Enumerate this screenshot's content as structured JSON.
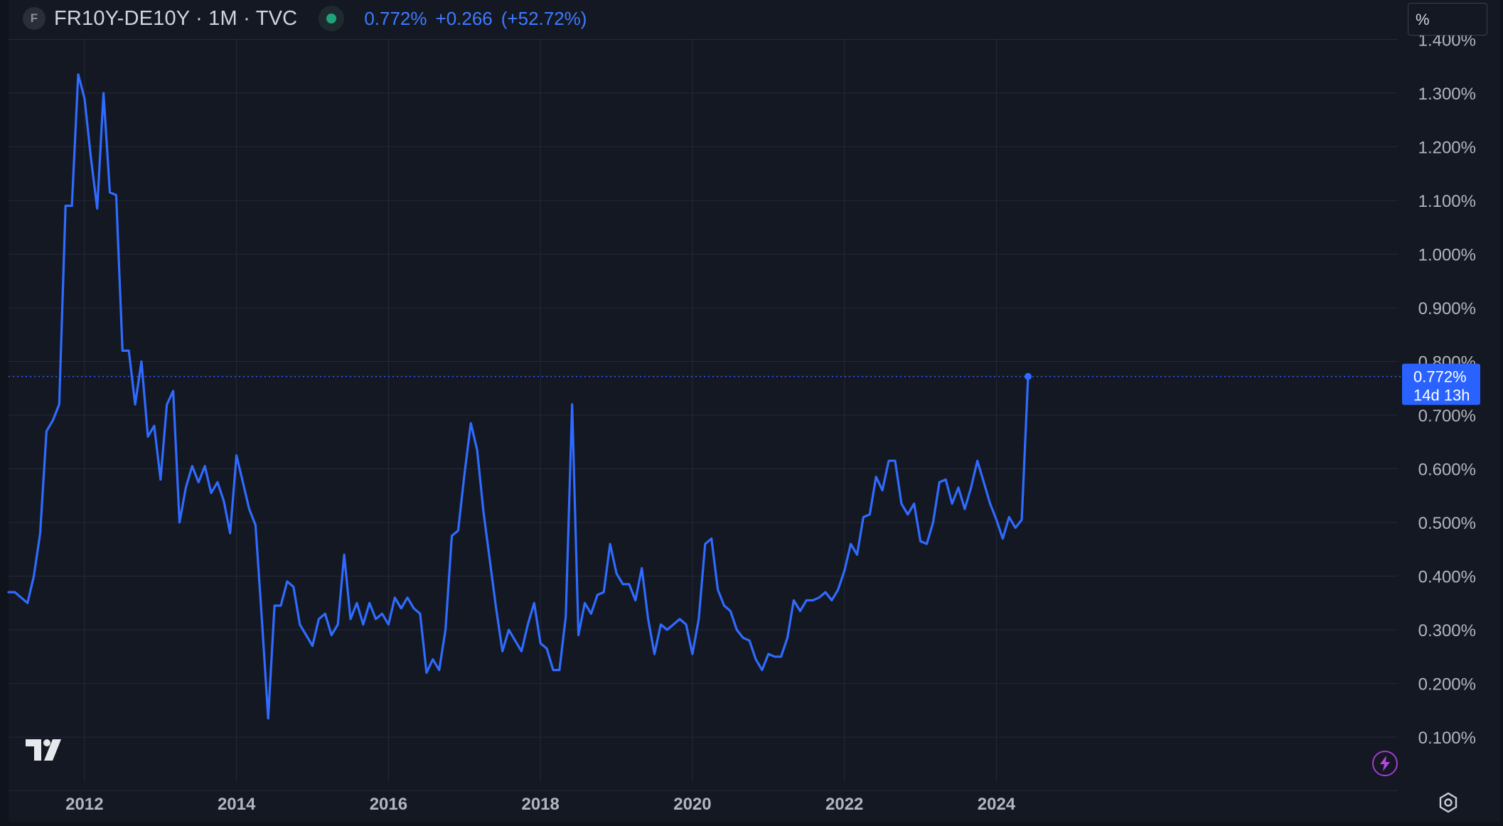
{
  "header": {
    "source_badge": "F",
    "symbol_title": "FR10Y-DE10Y · 1M · TVC",
    "status_icon": "market-status-dot",
    "last_value": "0.772%",
    "change_value": "+0.266",
    "change_percent": "(+52.72%)"
  },
  "scale_unit": "%",
  "price_tag": {
    "value": "0.772%",
    "countdown": "14d 13h"
  },
  "colors": {
    "background": "#141823",
    "line": "#2f6bff",
    "grid": "#242936",
    "axis_text": "#b2b5be",
    "accent": "#2962ff"
  },
  "icons": [
    "tradingview-logo-icon",
    "lightning-icon",
    "gear-icon",
    "market-status-dot"
  ],
  "chart_data": {
    "type": "line",
    "title": "FR10Y-DE10Y · 1M · TVC",
    "xlabel": "",
    "ylabel": "",
    "x_ticks": [
      "2012",
      "2014",
      "2016",
      "2018",
      "2020",
      "2022",
      "2024"
    ],
    "y_ticks": [
      "0.100%",
      "0.200%",
      "0.300%",
      "0.400%",
      "0.500%",
      "0.600%",
      "0.700%",
      "0.800%",
      "0.900%",
      "1.000%",
      "1.100%",
      "1.200%",
      "1.300%",
      "1.400%"
    ],
    "ylim": [
      0.0,
      1.4
    ],
    "xlim": [
      "2011-01",
      "2024-07"
    ],
    "grid": true,
    "last_value_line": 0.772,
    "series": [
      {
        "points": [
          [
            "2011-01",
            0.37
          ],
          [
            "2011-02",
            0.37
          ],
          [
            "2011-03",
            0.36
          ],
          [
            "2011-04",
            0.35
          ],
          [
            "2011-05",
            0.4
          ],
          [
            "2011-06",
            0.48
          ],
          [
            "2011-07",
            0.67
          ],
          [
            "2011-08",
            0.69
          ],
          [
            "2011-09",
            0.72
          ],
          [
            "2011-10",
            1.09
          ],
          [
            "2011-11",
            1.09
          ],
          [
            "2011-12",
            1.335
          ],
          [
            "2012-01",
            1.29
          ],
          [
            "2012-02",
            1.18
          ],
          [
            "2012-03",
            1.085
          ],
          [
            "2012-04",
            1.3
          ],
          [
            "2012-05",
            1.115
          ],
          [
            "2012-06",
            1.11
          ],
          [
            "2012-07",
            0.82
          ],
          [
            "2012-08",
            0.82
          ],
          [
            "2012-09",
            0.72
          ],
          [
            "2012-10",
            0.8
          ],
          [
            "2012-11",
            0.66
          ],
          [
            "2012-12",
            0.68
          ],
          [
            "2013-01",
            0.58
          ],
          [
            "2013-02",
            0.72
          ],
          [
            "2013-03",
            0.745
          ],
          [
            "2013-04",
            0.5
          ],
          [
            "2013-05",
            0.565
          ],
          [
            "2013-06",
            0.605
          ],
          [
            "2013-07",
            0.575
          ],
          [
            "2013-08",
            0.605
          ],
          [
            "2013-09",
            0.555
          ],
          [
            "2013-10",
            0.575
          ],
          [
            "2013-11",
            0.54
          ],
          [
            "2013-12",
            0.48
          ],
          [
            "2014-01",
            0.625
          ],
          [
            "2014-02",
            0.575
          ],
          [
            "2014-03",
            0.525
          ],
          [
            "2014-04",
            0.495
          ],
          [
            "2014-05",
            0.32
          ],
          [
            "2014-06",
            0.135
          ],
          [
            "2014-07",
            0.345
          ],
          [
            "2014-08",
            0.345
          ],
          [
            "2014-09",
            0.39
          ],
          [
            "2014-10",
            0.38
          ],
          [
            "2014-11",
            0.31
          ],
          [
            "2014-12",
            0.29
          ],
          [
            "2015-01",
            0.27
          ],
          [
            "2015-02",
            0.32
          ],
          [
            "2015-03",
            0.33
          ],
          [
            "2015-04",
            0.29
          ],
          [
            "2015-05",
            0.31
          ],
          [
            "2015-06",
            0.44
          ],
          [
            "2015-07",
            0.32
          ],
          [
            "2015-08",
            0.35
          ],
          [
            "2015-09",
            0.31
          ],
          [
            "2015-10",
            0.35
          ],
          [
            "2015-11",
            0.32
          ],
          [
            "2015-12",
            0.33
          ],
          [
            "2016-01",
            0.31
          ],
          [
            "2016-02",
            0.36
          ],
          [
            "2016-03",
            0.34
          ],
          [
            "2016-04",
            0.36
          ],
          [
            "2016-05",
            0.34
          ],
          [
            "2016-06",
            0.33
          ],
          [
            "2016-07",
            0.22
          ],
          [
            "2016-08",
            0.245
          ],
          [
            "2016-09",
            0.225
          ],
          [
            "2016-10",
            0.3
          ],
          [
            "2016-11",
            0.475
          ],
          [
            "2016-12",
            0.485
          ],
          [
            "2017-01",
            0.59
          ],
          [
            "2017-02",
            0.685
          ],
          [
            "2017-03",
            0.635
          ],
          [
            "2017-04",
            0.52
          ],
          [
            "2017-05",
            0.43
          ],
          [
            "2017-06",
            0.34
          ],
          [
            "2017-07",
            0.26
          ],
          [
            "2017-08",
            0.3
          ],
          [
            "2017-09",
            0.28
          ],
          [
            "2017-10",
            0.26
          ],
          [
            "2017-11",
            0.31
          ],
          [
            "2017-12",
            0.35
          ],
          [
            "2018-01",
            0.275
          ],
          [
            "2018-02",
            0.265
          ],
          [
            "2018-03",
            0.225
          ],
          [
            "2018-04",
            0.225
          ],
          [
            "2018-05",
            0.325
          ],
          [
            "2018-06",
            0.72
          ],
          [
            "2018-07",
            0.29
          ],
          [
            "2018-08",
            0.35
          ],
          [
            "2018-09",
            0.33
          ],
          [
            "2018-10",
            0.365
          ],
          [
            "2018-11",
            0.37
          ],
          [
            "2018-12",
            0.46
          ],
          [
            "2019-01",
            0.405
          ],
          [
            "2019-02",
            0.385
          ],
          [
            "2019-03",
            0.385
          ],
          [
            "2019-04",
            0.355
          ],
          [
            "2019-05",
            0.415
          ],
          [
            "2019-06",
            0.32
          ],
          [
            "2019-07",
            0.255
          ],
          [
            "2019-08",
            0.31
          ],
          [
            "2019-09",
            0.3
          ],
          [
            "2019-10",
            0.31
          ],
          [
            "2019-11",
            0.32
          ],
          [
            "2019-12",
            0.31
          ],
          [
            "2020-01",
            0.255
          ],
          [
            "2020-02",
            0.32
          ],
          [
            "2020-03",
            0.46
          ],
          [
            "2020-04",
            0.47
          ],
          [
            "2020-05",
            0.375
          ],
          [
            "2020-06",
            0.345
          ],
          [
            "2020-07",
            0.335
          ],
          [
            "2020-08",
            0.3
          ],
          [
            "2020-09",
            0.285
          ],
          [
            "2020-10",
            0.28
          ],
          [
            "2020-11",
            0.245
          ],
          [
            "2020-12",
            0.225
          ],
          [
            "2021-01",
            0.255
          ],
          [
            "2021-02",
            0.25
          ],
          [
            "2021-03",
            0.25
          ],
          [
            "2021-04",
            0.285
          ],
          [
            "2021-05",
            0.355
          ],
          [
            "2021-06",
            0.335
          ],
          [
            "2021-07",
            0.355
          ],
          [
            "2021-08",
            0.355
          ],
          [
            "2021-09",
            0.36
          ],
          [
            "2021-10",
            0.37
          ],
          [
            "2021-11",
            0.355
          ],
          [
            "2021-12",
            0.375
          ],
          [
            "2022-01",
            0.41
          ],
          [
            "2022-02",
            0.46
          ],
          [
            "2022-03",
            0.44
          ],
          [
            "2022-04",
            0.51
          ],
          [
            "2022-05",
            0.515
          ],
          [
            "2022-06",
            0.585
          ],
          [
            "2022-07",
            0.56
          ],
          [
            "2022-08",
            0.615
          ],
          [
            "2022-09",
            0.615
          ],
          [
            "2022-10",
            0.535
          ],
          [
            "2022-11",
            0.515
          ],
          [
            "2022-12",
            0.535
          ],
          [
            "2023-01",
            0.465
          ],
          [
            "2023-02",
            0.46
          ],
          [
            "2023-03",
            0.5
          ],
          [
            "2023-04",
            0.575
          ],
          [
            "2023-05",
            0.58
          ],
          [
            "2023-06",
            0.535
          ],
          [
            "2023-07",
            0.565
          ],
          [
            "2023-08",
            0.525
          ],
          [
            "2023-09",
            0.565
          ],
          [
            "2023-10",
            0.615
          ],
          [
            "2023-11",
            0.575
          ],
          [
            "2023-12",
            0.535
          ],
          [
            "2024-01",
            0.505
          ],
          [
            "2024-02",
            0.47
          ],
          [
            "2024-03",
            0.51
          ],
          [
            "2024-04",
            0.49
          ],
          [
            "2024-05",
            0.505
          ],
          [
            "2024-06",
            0.772
          ]
        ]
      }
    ]
  }
}
